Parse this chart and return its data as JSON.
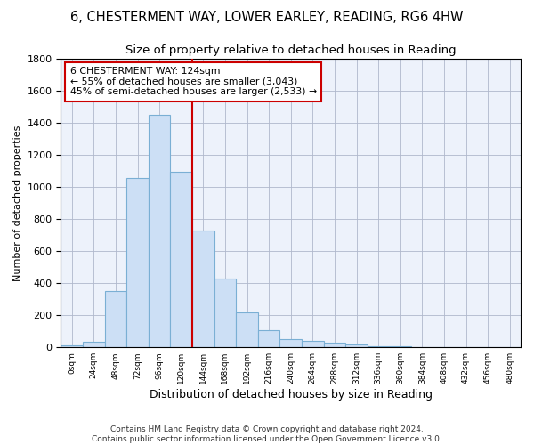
{
  "title": "6, CHESTERMENT WAY, LOWER EARLEY, READING, RG6 4HW",
  "subtitle": "Size of property relative to detached houses in Reading",
  "xlabel": "Distribution of detached houses by size in Reading",
  "ylabel": "Number of detached properties",
  "bin_labels": [
    "0sqm",
    "24sqm",
    "48sqm",
    "72sqm",
    "96sqm",
    "120sqm",
    "144sqm",
    "168sqm",
    "192sqm",
    "216sqm",
    "240sqm",
    "264sqm",
    "288sqm",
    "312sqm",
    "336sqm",
    "360sqm",
    "384sqm",
    "408sqm",
    "432sqm",
    "456sqm",
    "480sqm"
  ],
  "bar_values": [
    10,
    35,
    350,
    1055,
    1450,
    1095,
    730,
    430,
    220,
    105,
    50,
    40,
    30,
    20,
    5,
    5,
    0,
    0,
    0,
    0,
    0
  ],
  "bar_color": "#ccdff5",
  "bar_edge_color": "#7aafd4",
  "vline_color": "#cc0000",
  "vline_bin": 5,
  "annotation_line1": "6 CHESTERMENT WAY: 124sqm",
  "annotation_line2": "← 55% of detached houses are smaller (3,043)",
  "annotation_line3": "45% of semi-detached houses are larger (2,533) →",
  "annotation_box_color": "#cc0000",
  "ylim": [
    0,
    1800
  ],
  "yticks": [
    0,
    200,
    400,
    600,
    800,
    1000,
    1200,
    1400,
    1600,
    1800
  ],
  "footnote1": "Contains HM Land Registry data © Crown copyright and database right 2024.",
  "footnote2": "Contains public sector information licensed under the Open Government Licence v3.0.",
  "bg_color": "#edf2fb",
  "grid_color": "#b0b8cc",
  "title_fontsize": 10.5,
  "subtitle_fontsize": 9.5,
  "ylabel_fontsize": 8,
  "xlabel_fontsize": 9
}
